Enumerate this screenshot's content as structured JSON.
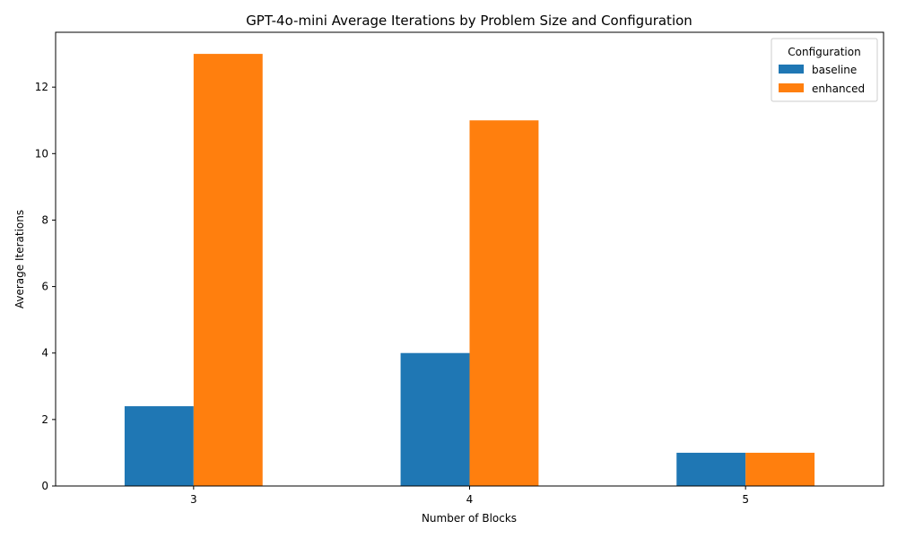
{
  "chart_data": {
    "type": "bar",
    "title": "GPT-4o-mini Average Iterations by Problem Size and Configuration",
    "xlabel": "Number of Blocks",
    "ylabel": "Average Iterations",
    "categories": [
      "3",
      "4",
      "5"
    ],
    "series": [
      {
        "name": "baseline",
        "values": [
          2.4,
          4,
          1
        ],
        "color": "#1f77b4"
      },
      {
        "name": "enhanced",
        "values": [
          13,
          11,
          1
        ],
        "color": "#ff7f0e"
      }
    ],
    "ylim": [
      0,
      13.65
    ],
    "yticks": [
      0,
      2,
      4,
      6,
      8,
      10,
      12
    ],
    "grid": false,
    "legend": {
      "title": "Configuration",
      "placement": "top-right"
    }
  }
}
